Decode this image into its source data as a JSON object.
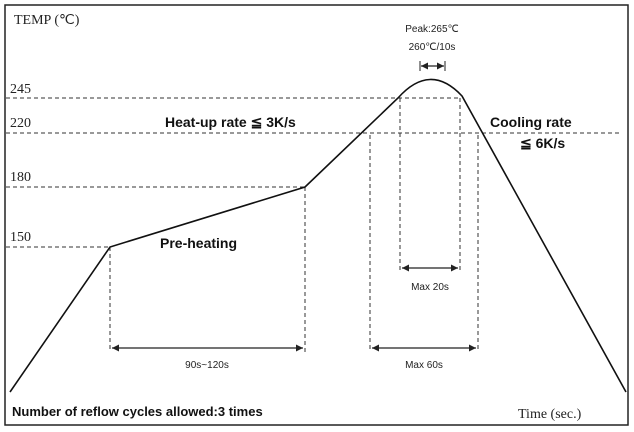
{
  "axes": {
    "y_label": "TEMP (℃)",
    "x_label": "Time (sec.)"
  },
  "levels": [
    "245",
    "220",
    "180",
    "150"
  ],
  "peak": {
    "label": "Peak:265℃",
    "hold": "260℃/10s"
  },
  "annotations": {
    "heat_up": "Heat-up rate ≦ 3K/s",
    "cooling_1": "Cooling rate",
    "cooling_2": "≦ 6K/s",
    "pre_heating": "Pre-heating",
    "max_20": "Max 20s",
    "preheat_time": "90s~120s",
    "max_60": "Max 60s"
  },
  "footer": "Number of reflow cycles allowed:3 times"
}
